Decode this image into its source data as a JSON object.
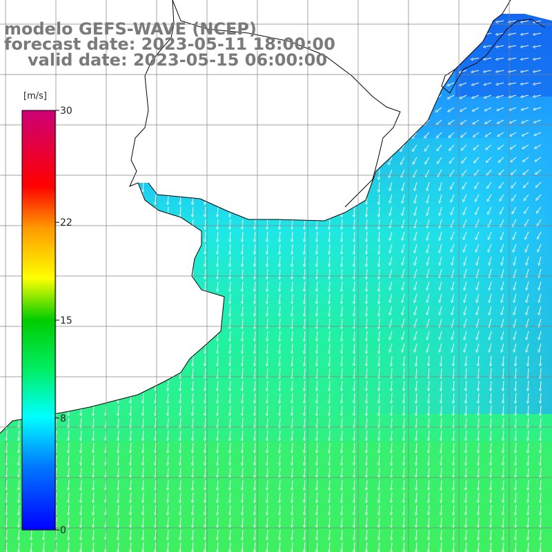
{
  "titles": {
    "line1": "modelo GEFS-WAVE (NCEP)",
    "line2": "forecast date: 2023-05-11 18:00:00",
    "line3": "valid date: 2023-05-15 06:00:00"
  },
  "colorbar": {
    "unit": "[m/s]",
    "ticks": [
      {
        "label": "30",
        "value": 30
      },
      {
        "label": "22",
        "value": 22
      },
      {
        "label": "15",
        "value": 15
      },
      {
        "label": "8",
        "value": 8
      },
      {
        "label": "0",
        "value": 0
      }
    ],
    "colors": [
      "#0000ff",
      "#00aaff",
      "#00ffff",
      "#00dd44",
      "#00ee00",
      "#ffff00",
      "#ff8800",
      "#ff0000",
      "#cc0066"
    ]
  },
  "field_colors": {
    "north": "#1e78f0",
    "mid": "#22ccff",
    "cyan": "#19f0d6",
    "green": "#22f28a",
    "south": "#3cf060"
  }
}
